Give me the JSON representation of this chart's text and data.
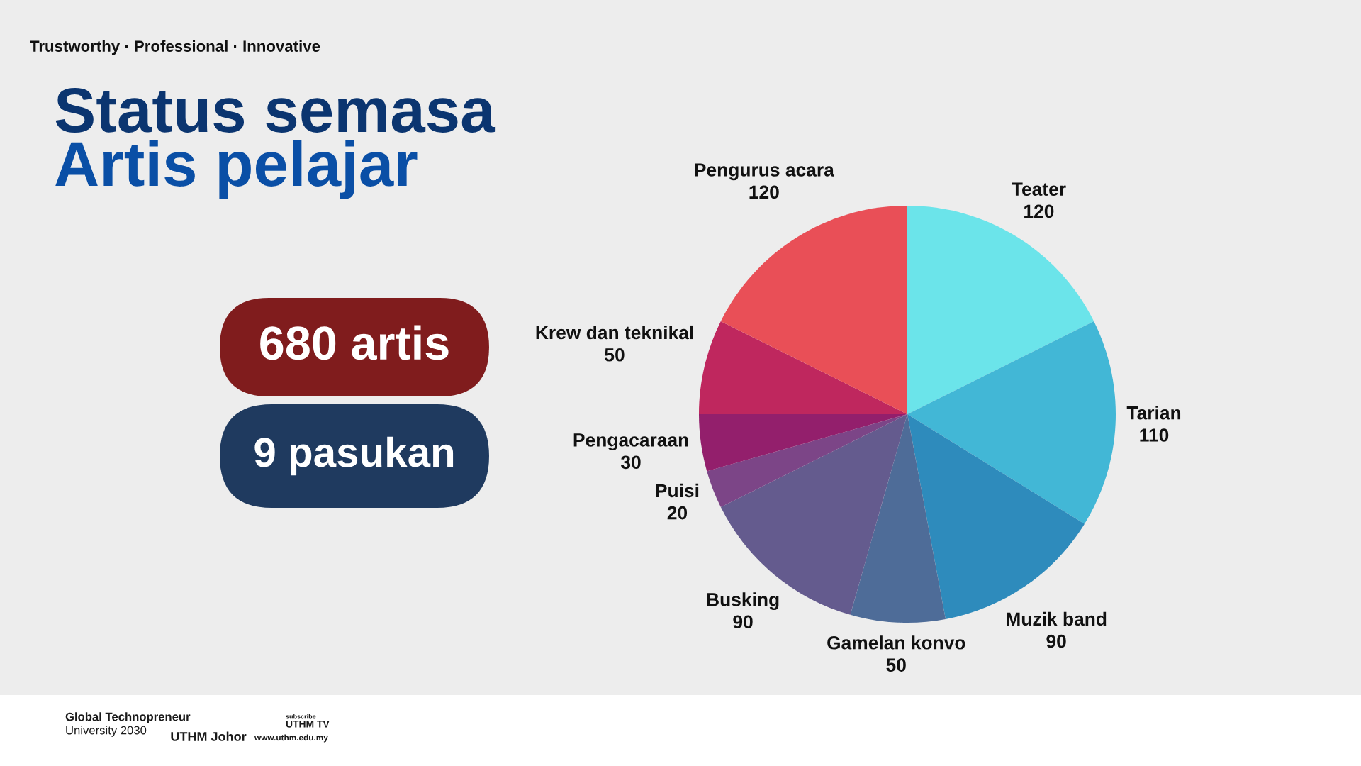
{
  "chart_data": {
    "type": "pie",
    "title": "Status semasa\nArtis pelajar",
    "subtitle": "Trustworthy · Professional · Innovative",
    "categories": [
      "Teater",
      "Tarian",
      "Muzik band",
      "Gamelan konvo",
      "Busking",
      "Puisi",
      "Pengacaraan",
      "Krew dan teknikal",
      "Pengurus acara"
    ],
    "values": [
      120,
      110,
      90,
      50,
      90,
      20,
      30,
      50,
      120
    ],
    "colors": [
      "#6be4ea",
      "#42b7d6",
      "#2e8bbc",
      "#4e6c98",
      "#645b8e",
      "#7c4587",
      "#931f6c",
      "#bf275e",
      "#e94f57"
    ],
    "data_labels": true,
    "annotations": [
      "680 artis",
      "9 pasukan",
      "Global Technopreneur\nUniversity 2030",
      "UTHM Johor",
      "subscribe\nUTHM TV",
      "www.uthm.edu.my"
    ]
  }
}
